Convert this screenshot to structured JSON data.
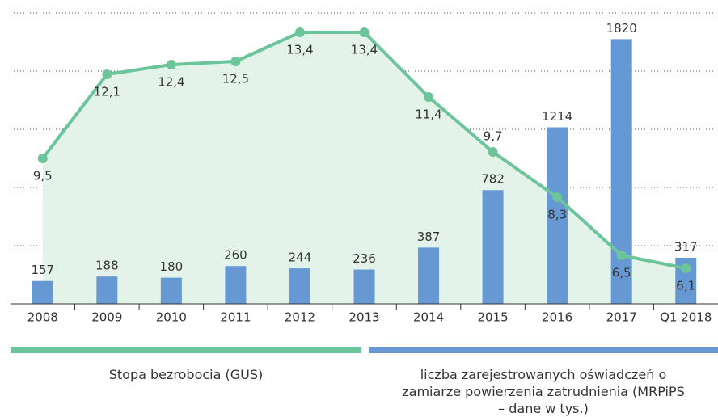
{
  "chart_data": {
    "type": "bar",
    "categories": [
      "2008",
      "2009",
      "2010",
      "2011",
      "2012",
      "2013",
      "2014",
      "2015",
      "2016",
      "2017",
      "Q1 2018"
    ],
    "series": [
      {
        "name": "Stopa bezrobocia (GUS)",
        "type": "line",
        "axis": "y2",
        "color": "#6cc49a",
        "area_color": "#e3f3e9",
        "values": [
          9.5,
          12.1,
          12.4,
          12.5,
          13.4,
          13.4,
          11.4,
          9.7,
          8.3,
          6.5,
          6.1
        ],
        "value_labels": [
          "9,5",
          "12,1",
          "12,4",
          "12,5",
          "13,4",
          "13,4",
          "11,4",
          "9,7",
          "8,3",
          "6,5",
          "6,1"
        ]
      },
      {
        "name": "liczba zarejestrowanych oświadczeń o zamiarze powierzenia zatrudnienia (MRPiPS – dane w tys.)",
        "type": "bar",
        "color": "#6699d3",
        "values": [
          157,
          188,
          180,
          260,
          244,
          236,
          387,
          782,
          1214,
          1820,
          317
        ]
      }
    ],
    "ylim": [
      0,
      2000
    ],
    "yticks": [
      400,
      800,
      1200,
      1600,
      2000
    ],
    "y2lim": [
      5,
      14
    ],
    "grid": true
  }
}
